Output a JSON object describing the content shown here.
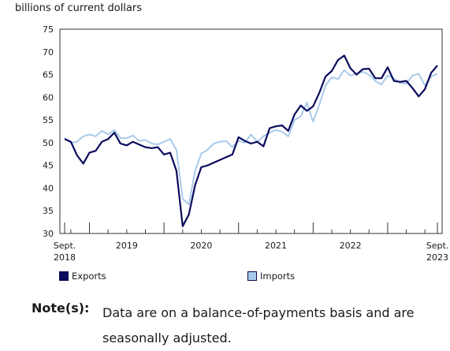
{
  "chart_data": {
    "type": "line",
    "ylabel": "billions of current dollars",
    "ylim": [
      30,
      75
    ],
    "yticks": [
      30,
      35,
      40,
      45,
      50,
      55,
      60,
      65,
      70,
      75
    ],
    "xlim": [
      "2018-09",
      "2023-09"
    ],
    "x_tick_labels": [
      {
        "label": "Sept.",
        "sub": "2018",
        "date": "2018-09"
      },
      {
        "label": "2019",
        "sub": "",
        "date": "2019-07"
      },
      {
        "label": "2020",
        "sub": "",
        "date": "2020-07"
      },
      {
        "label": "2021",
        "sub": "",
        "date": "2021-07"
      },
      {
        "label": "2022",
        "sub": "",
        "date": "2022-07"
      },
      {
        "label": "Sept.",
        "sub": "2023",
        "date": "2023-09"
      }
    ],
    "x": [
      "2018-09",
      "2018-10",
      "2018-11",
      "2018-12",
      "2019-01",
      "2019-02",
      "2019-03",
      "2019-04",
      "2019-05",
      "2019-06",
      "2019-07",
      "2019-08",
      "2019-09",
      "2019-10",
      "2019-11",
      "2019-12",
      "2020-01",
      "2020-02",
      "2020-03",
      "2020-04",
      "2020-05",
      "2020-06",
      "2020-07",
      "2020-08",
      "2020-09",
      "2020-10",
      "2020-11",
      "2020-12",
      "2021-01",
      "2021-02",
      "2021-03",
      "2021-04",
      "2021-05",
      "2021-06",
      "2021-07",
      "2021-08",
      "2021-09",
      "2021-10",
      "2021-11",
      "2021-12",
      "2022-01",
      "2022-02",
      "2022-03",
      "2022-04",
      "2022-05",
      "2022-06",
      "2022-07",
      "2022-08",
      "2022-09",
      "2022-10",
      "2022-11",
      "2022-12",
      "2023-01",
      "2023-02",
      "2023-03",
      "2023-04",
      "2023-05",
      "2023-06",
      "2023-07",
      "2023-08",
      "2023-09"
    ],
    "series": [
      {
        "name": "Exports",
        "color": "#0b0b5e",
        "values": [
          50.8,
          50.2,
          47.2,
          45.4,
          47.8,
          48.2,
          50.2,
          50.8,
          52.2,
          49.8,
          49.4,
          50.2,
          49.6,
          49.0,
          48.8,
          49.0,
          47.4,
          47.8,
          43.8,
          31.6,
          34.2,
          40.6,
          44.6,
          45.0,
          45.6,
          46.2,
          46.8,
          47.4,
          51.2,
          50.4,
          49.8,
          50.2,
          49.2,
          53.2,
          53.6,
          53.8,
          52.6,
          56.2,
          58.2,
          57.0,
          58.0,
          61.0,
          64.6,
          65.8,
          68.2,
          69.2,
          66.4,
          65.0,
          66.2,
          66.3,
          64.2,
          64.2,
          66.6,
          63.6,
          63.4,
          63.6,
          62.0,
          60.2,
          61.8,
          65.4,
          67.0
        ]
      },
      {
        "name": "Imports",
        "color": "#a9cbea",
        "values": [
          51.0,
          50.0,
          50.2,
          51.4,
          51.8,
          51.4,
          52.6,
          51.8,
          52.8,
          51.0,
          51.0,
          51.6,
          50.4,
          50.6,
          49.8,
          49.6,
          50.2,
          50.8,
          48.4,
          37.6,
          36.4,
          43.8,
          47.6,
          48.4,
          49.8,
          50.2,
          50.4,
          49.0,
          50.4,
          50.0,
          51.8,
          50.2,
          51.4,
          52.2,
          52.8,
          52.4,
          51.4,
          55.0,
          55.8,
          58.8,
          54.6,
          58.4,
          62.6,
          64.4,
          64.0,
          66.0,
          64.8,
          65.2,
          65.6,
          65.0,
          63.6,
          62.8,
          64.8,
          64.2,
          63.2,
          63.0,
          64.8,
          65.2,
          62.6,
          64.6,
          65.2
        ]
      }
    ],
    "grid": false,
    "legend": "bottom"
  },
  "legend": {
    "exports": "Exports",
    "imports": "Imports"
  },
  "note": {
    "label": "Note(s):",
    "text": "Data are on a balance-of-payments basis and are seasonally adjusted."
  }
}
